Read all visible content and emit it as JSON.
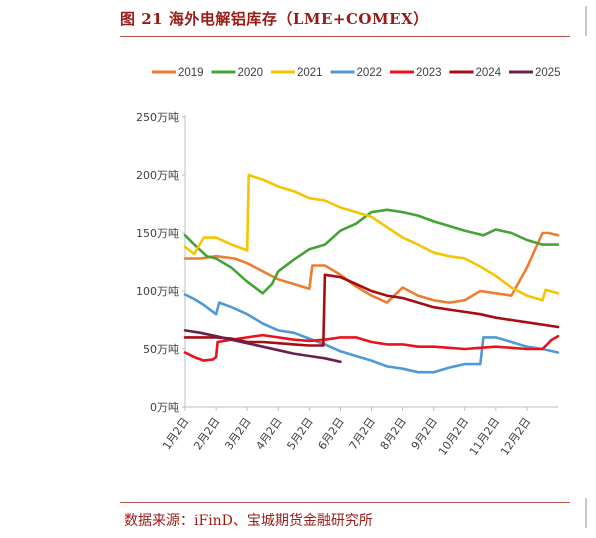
{
  "header": {
    "title": "图 21 海外电解铝库存（LME+COMEX）"
  },
  "footer": {
    "source": "数据来源：iFinD、宝城期货金融研究所"
  },
  "chart_data": {
    "type": "line",
    "title": "",
    "xlabel": "",
    "ylabel": "",
    "ylim": [
      0,
      250
    ],
    "y_ticks": [
      0,
      50,
      100,
      150,
      200,
      250
    ],
    "y_tick_labels": [
      "0万吨",
      "50万吨",
      "100万吨",
      "150万吨",
      "200万吨",
      "250万吨"
    ],
    "x_range": [
      1,
      13
    ],
    "x_tick_labels": [
      "1月2日",
      "2月2日",
      "3月2日",
      "4月2日",
      "5月2日",
      "6月2日",
      "7月2日",
      "8月2日",
      "9月2日",
      "10月2日",
      "11月2日",
      "12月2日"
    ],
    "grid": false,
    "legend_position": "top",
    "series": [
      {
        "name": "2019",
        "color": "#ed7d31",
        "x": [
          1,
          1.5,
          2,
          2.6,
          3,
          3.5,
          4,
          4.5,
          5,
          5.1,
          5.5,
          6,
          6.5,
          7,
          7.5,
          8,
          8.5,
          9,
          9.5,
          10,
          10.5,
          11,
          11.5,
          12,
          12.5,
          12.7,
          13
        ],
        "y": [
          128,
          128,
          130,
          128,
          124,
          117,
          110,
          106,
          102,
          122,
          122,
          114,
          104,
          96,
          90,
          103,
          96,
          92,
          90,
          92,
          100,
          98,
          96,
          120,
          150,
          150,
          148
        ]
      },
      {
        "name": "2020",
        "color": "#43a335",
        "x": [
          1,
          1.3,
          1.7,
          2,
          2.5,
          3,
          3.5,
          3.8,
          4,
          4.5,
          5,
          5.5,
          6,
          6.5,
          7,
          7.5,
          8,
          8.5,
          9,
          9.5,
          10,
          10.3,
          10.6,
          11,
          11.5,
          12,
          12.5,
          13
        ],
        "y": [
          148,
          140,
          130,
          128,
          120,
          108,
          98,
          106,
          117,
          127,
          136,
          140,
          152,
          158,
          168,
          170,
          168,
          165,
          160,
          156,
          152,
          150,
          148,
          153,
          150,
          144,
          140,
          140
        ]
      },
      {
        "name": "2021",
        "color": "#f6c400",
        "x": [
          1,
          1.3,
          1.6,
          2,
          2.5,
          3,
          3.05,
          3.5,
          4,
          4.5,
          5,
          5.5,
          6,
          6.5,
          7,
          7.5,
          8,
          8.5,
          9,
          9.5,
          10,
          10.5,
          11,
          11.5,
          12,
          12.5,
          12.6,
          13
        ],
        "y": [
          138,
          132,
          146,
          146,
          140,
          135,
          200,
          196,
          190,
          186,
          180,
          178,
          172,
          168,
          164,
          155,
          146,
          140,
          133,
          130,
          128,
          121,
          113,
          103,
          96,
          92,
          101,
          98
        ]
      },
      {
        "name": "2022",
        "color": "#4f9ad6",
        "x": [
          1,
          1.3,
          1.6,
          1.9,
          2,
          2.1,
          2.5,
          3,
          3.5,
          4,
          4.5,
          5,
          5.5,
          6,
          6.5,
          7,
          7.5,
          8,
          8.5,
          9,
          9.5,
          10,
          10.5,
          10.6,
          11,
          11.5,
          12,
          12.5,
          13
        ],
        "y": [
          97,
          93,
          88,
          82,
          80,
          90,
          86,
          80,
          72,
          66,
          64,
          59,
          54,
          48,
          44,
          40,
          35,
          33,
          30,
          30,
          34,
          37,
          37,
          60,
          60,
          56,
          52,
          50,
          47
        ]
      },
      {
        "name": "2023",
        "color": "#e8131c",
        "x": [
          1,
          1.3,
          1.6,
          1.9,
          2,
          2.05,
          2.5,
          3,
          3.5,
          4,
          4.5,
          5,
          5.5,
          6,
          6.5,
          7,
          7.5,
          8,
          8.5,
          9,
          9.5,
          10,
          10.5,
          11,
          11.5,
          12,
          12.5,
          12.8,
          13
        ],
        "y": [
          47,
          43,
          40,
          41,
          43,
          56,
          58,
          60,
          62,
          60,
          58,
          57,
          58,
          60,
          60,
          56,
          54,
          54,
          52,
          52,
          51,
          50,
          51,
          52,
          51,
          50,
          50,
          58,
          61
        ]
      },
      {
        "name": "2024",
        "color": "#a50d12",
        "x": [
          1,
          1.5,
          2,
          2.5,
          3,
          3.5,
          4,
          4.5,
          5,
          5.45,
          5.5,
          6,
          6.5,
          7,
          7.5,
          8,
          8.5,
          9,
          9.5,
          10,
          10.5,
          11,
          11.5,
          12,
          12.5,
          13
        ],
        "y": [
          60,
          60,
          60,
          59,
          56,
          56,
          55,
          54,
          53,
          53,
          114,
          112,
          106,
          100,
          96,
          94,
          90,
          86,
          84,
          82,
          80,
          77,
          75,
          73,
          71,
          69
        ]
      },
      {
        "name": "2025",
        "color": "#6b1f4f",
        "x": [
          1,
          1.5,
          2,
          2.5,
          3,
          3.5,
          4,
          4.5,
          5,
          5.5,
          6
        ],
        "y": [
          66,
          64,
          61,
          58,
          55,
          52,
          49,
          46,
          44,
          42,
          39
        ]
      }
    ]
  }
}
